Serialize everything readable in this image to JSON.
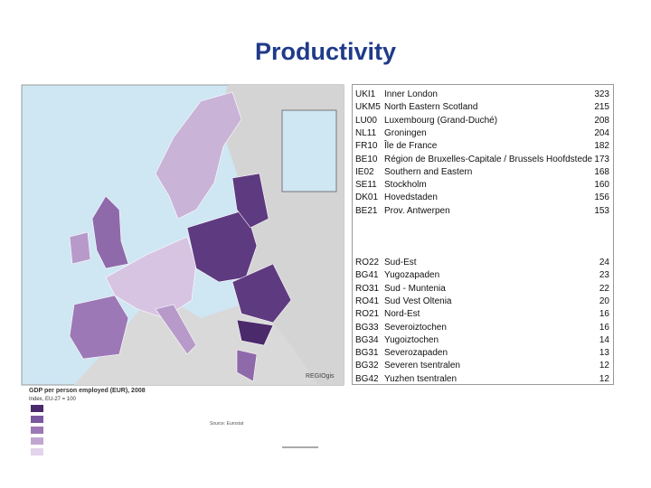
{
  "title": "Productivity",
  "map": {
    "legend_title": "GDP per person employed (EUR), 2008",
    "legend_subtitle": "Index, EU-27 = 100",
    "source": "Source: Eurostat",
    "logo": "REGIOgis"
  },
  "table": {
    "top": [
      [
        "UKI1",
        "Inner London",
        323
      ],
      [
        "UKM5",
        "North Eastern Scotland",
        215
      ],
      [
        "LU00",
        "Luxembourg (Grand-Duché)",
        208
      ],
      [
        "NL11",
        "Groningen",
        204
      ],
      [
        "FR10",
        "Île de France",
        182
      ],
      [
        "BE10",
        "Région de Bruxelles-Capitale / Brussels Hoofdstedeli",
        173
      ],
      [
        "IE02",
        "Southern and Eastern",
        168
      ],
      [
        "SE11",
        "Stockholm",
        160
      ],
      [
        "DK01",
        "Hovedstaden",
        156
      ],
      [
        "BE21",
        "Prov. Antwerpen",
        153
      ]
    ],
    "bottom": [
      [
        "RO22",
        "Sud-Est",
        24
      ],
      [
        "BG41",
        "Yugozapaden",
        23
      ],
      [
        "RO31",
        "Sud - Muntenia",
        22
      ],
      [
        "RO41",
        "Sud Vest Oltenia",
        20
      ],
      [
        "RO21",
        "Nord-Est",
        16
      ],
      [
        "BG33",
        "Severoiztochen",
        16
      ],
      [
        "BG34",
        "Yugoiztochen",
        14
      ],
      [
        "BG31",
        "Severozapaden",
        13
      ],
      [
        "BG32",
        "Severen tsentralen",
        12
      ],
      [
        "BG42",
        "Yuzhen tsentralen",
        12
      ]
    ]
  }
}
